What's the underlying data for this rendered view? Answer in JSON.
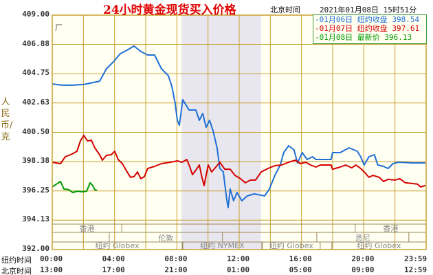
{
  "header": {
    "title": "24小时黄金现货买入价格",
    "timezone_label": "北京时间",
    "datetime": "2021年01月08日 15时51分"
  },
  "corner_mark": "厂",
  "legend": [
    {
      "label": "-01月06日 纽约收盘 398.54",
      "color": "#1f6fd6"
    },
    {
      "label": "-01月07日 纽约收盘 397.61",
      "color": "#d40000"
    },
    {
      "label": "-01月08日    最新价 396.13",
      "color": "#009a00"
    }
  ],
  "chart_data": {
    "type": "line",
    "title": "24小时黄金现货买入价格",
    "ylabel": "人民币/克",
    "ylim": [
      392.0,
      409.0
    ],
    "yticks": [
      "409.00",
      "406.88",
      "404.75",
      "402.63",
      "400.50",
      "398.38",
      "396.25",
      "394.13",
      "392.00"
    ],
    "xlim": [
      0,
      24
    ],
    "x_row_labels": [
      "纽约时间",
      "北京时间"
    ],
    "xticks_ny": [
      "00:00",
      "04:00",
      "08:00",
      "12:00",
      "16:00",
      "20:00",
      "23:59"
    ],
    "xticks_bj": [
      "13:00",
      "17:00",
      "21:00",
      "01:00",
      "05:00",
      "09:00",
      "12:59"
    ],
    "grid": true,
    "legend_position": "top-right",
    "shaded_session": [
      8.3,
      13.4
    ],
    "sessions": [
      {
        "name": "香港",
        "row": 0,
        "start": 0,
        "end": 4.46
      },
      {
        "name": "香港",
        "row": 0,
        "start": 19.45,
        "end": 24
      },
      {
        "name": "伦敦",
        "row": 1,
        "start": 3.66,
        "end": 10.93
      },
      {
        "name": "悉尼",
        "row": 1,
        "start": 16.98,
        "end": 22.89
      },
      {
        "name": "纽约 Globex",
        "row": 2,
        "start": 0,
        "end": 8.34
      },
      {
        "name": "纽约 NYMEX",
        "row": 2,
        "start": 8.38,
        "end": 13.45
      },
      {
        "name": "纽约 Globex",
        "row": 2,
        "start": 13.49,
        "end": 17.2
      },
      {
        "name": "纽约 Globex",
        "row": 2,
        "start": 17.95,
        "end": 24
      }
    ],
    "series": [
      {
        "name": "01月06日",
        "color": "#1f6fd6",
        "points": [
          [
            0,
            404.01
          ],
          [
            0.62,
            403.92
          ],
          [
            1.28,
            403.92
          ],
          [
            2.03,
            403.97
          ],
          [
            2.6,
            404.11
          ],
          [
            3.04,
            404.21
          ],
          [
            3.48,
            405.11
          ],
          [
            3.92,
            405.61
          ],
          [
            4.37,
            406.21
          ],
          [
            4.81,
            406.46
          ],
          [
            5.25,
            406.76
          ],
          [
            5.69,
            406.36
          ],
          [
            6.13,
            406.11
          ],
          [
            6.57,
            406.11
          ],
          [
            7.01,
            405.11
          ],
          [
            7.45,
            404.61
          ],
          [
            7.67,
            403.87
          ],
          [
            7.89,
            402.62
          ],
          [
            8.03,
            401.37
          ],
          [
            8.16,
            401.02
          ],
          [
            8.38,
            402.87
          ],
          [
            8.78,
            402.12
          ],
          [
            9.22,
            402.12
          ],
          [
            9.44,
            401.37
          ],
          [
            9.66,
            401.87
          ],
          [
            9.88,
            400.87
          ],
          [
            10.1,
            401.37
          ],
          [
            10.32,
            400.63
          ],
          [
            10.58,
            399.38
          ],
          [
            10.76,
            397.88
          ],
          [
            10.98,
            397.63
          ],
          [
            11.2,
            395.64
          ],
          [
            11.29,
            395.04
          ],
          [
            11.42,
            396.39
          ],
          [
            11.64,
            395.54
          ],
          [
            11.86,
            396.14
          ],
          [
            12.17,
            395.54
          ],
          [
            12.52,
            395.89
          ],
          [
            12.97,
            396.04
          ],
          [
            13.63,
            395.89
          ],
          [
            13.94,
            396.39
          ],
          [
            14.29,
            397.38
          ],
          [
            14.64,
            398.13
          ],
          [
            14.86,
            399.03
          ],
          [
            15.17,
            399.53
          ],
          [
            15.52,
            399.23
          ],
          [
            15.74,
            398.28
          ],
          [
            16.05,
            399.03
          ],
          [
            16.36,
            398.53
          ],
          [
            16.71,
            398.73
          ],
          [
            16.93,
            398.53
          ],
          [
            17.9,
            398.53
          ],
          [
            17.99,
            399.03
          ],
          [
            18.48,
            399.03
          ],
          [
            19.05,
            399.38
          ],
          [
            19.58,
            399.13
          ],
          [
            19.8,
            398.73
          ],
          [
            20.02,
            398.13
          ],
          [
            20.33,
            398.73
          ],
          [
            20.68,
            398.88
          ],
          [
            20.9,
            398.13
          ],
          [
            21.26,
            398.03
          ],
          [
            21.56,
            397.88
          ],
          [
            21.87,
            398.23
          ],
          [
            22.23,
            398.33
          ],
          [
            23.11,
            398.28
          ],
          [
            23.95,
            398.28
          ]
        ]
      },
      {
        "name": "01月07日",
        "color": "#d40000",
        "points": [
          [
            0,
            398.33
          ],
          [
            0.53,
            398.23
          ],
          [
            0.84,
            398.73
          ],
          [
            1.28,
            398.93
          ],
          [
            1.59,
            399.13
          ],
          [
            1.81,
            399.88
          ],
          [
            2.03,
            400.28
          ],
          [
            2.25,
            399.88
          ],
          [
            2.51,
            399.93
          ],
          [
            2.73,
            399.38
          ],
          [
            3.04,
            398.88
          ],
          [
            3.22,
            398.48
          ],
          [
            3.48,
            398.83
          ],
          [
            3.79,
            398.88
          ],
          [
            4.01,
            399.13
          ],
          [
            4.23,
            398.53
          ],
          [
            4.5,
            398.23
          ],
          [
            4.81,
            397.63
          ],
          [
            5.03,
            397.24
          ],
          [
            5.25,
            397.29
          ],
          [
            5.47,
            397.63
          ],
          [
            5.69,
            397.14
          ],
          [
            5.91,
            397.29
          ],
          [
            6.13,
            397.88
          ],
          [
            6.57,
            398.03
          ],
          [
            7.01,
            398.23
          ],
          [
            7.59,
            398.33
          ],
          [
            8.03,
            398.43
          ],
          [
            8.33,
            398.33
          ],
          [
            8.64,
            398.53
          ],
          [
            8.82,
            398.03
          ],
          [
            9.0,
            397.43
          ],
          [
            9.26,
            397.83
          ],
          [
            9.44,
            398.13
          ],
          [
            9.61,
            397.24
          ],
          [
            9.75,
            396.64
          ],
          [
            9.88,
            397.38
          ],
          [
            10.01,
            398.13
          ],
          [
            10.23,
            397.63
          ],
          [
            10.54,
            398.03
          ],
          [
            10.76,
            398.33
          ],
          [
            11.07,
            397.83
          ],
          [
            11.42,
            397.83
          ],
          [
            11.73,
            397.38
          ],
          [
            12.08,
            397.14
          ],
          [
            12.39,
            396.84
          ],
          [
            12.74,
            397.04
          ],
          [
            13.05,
            397.04
          ],
          [
            13.41,
            397.63
          ],
          [
            13.85,
            397.88
          ],
          [
            14.29,
            398.08
          ],
          [
            14.73,
            398.13
          ],
          [
            15.17,
            398.33
          ],
          [
            15.61,
            398.48
          ],
          [
            15.92,
            398.23
          ],
          [
            16.27,
            398.33
          ],
          [
            16.58,
            398.13
          ],
          [
            16.93,
            397.98
          ],
          [
            17.2,
            398.13
          ],
          [
            17.9,
            398.13
          ],
          [
            17.99,
            397.83
          ],
          [
            18.48,
            397.98
          ],
          [
            18.83,
            398.13
          ],
          [
            19.23,
            397.93
          ],
          [
            19.49,
            398.13
          ],
          [
            19.8,
            397.88
          ],
          [
            20.11,
            397.53
          ],
          [
            20.33,
            397.24
          ],
          [
            20.59,
            397.38
          ],
          [
            20.99,
            397.24
          ],
          [
            21.26,
            396.94
          ],
          [
            21.56,
            397.09
          ],
          [
            22.01,
            397.04
          ],
          [
            22.31,
            397.14
          ],
          [
            22.67,
            396.84
          ],
          [
            23.11,
            396.79
          ],
          [
            23.46,
            396.74
          ],
          [
            23.64,
            396.54
          ],
          [
            23.95,
            396.64
          ]
        ]
      },
      {
        "name": "01月08日",
        "color": "#009a00",
        "points": [
          [
            0,
            396.54
          ],
          [
            0.26,
            396.74
          ],
          [
            0.53,
            396.94
          ],
          [
            0.75,
            396.39
          ],
          [
            1.06,
            396.34
          ],
          [
            1.32,
            396.14
          ],
          [
            1.63,
            396.24
          ],
          [
            1.94,
            396.19
          ],
          [
            2.21,
            396.24
          ],
          [
            2.43,
            396.84
          ],
          [
            2.6,
            396.64
          ],
          [
            2.73,
            396.34
          ],
          [
            2.87,
            396.29
          ]
        ]
      }
    ]
  }
}
